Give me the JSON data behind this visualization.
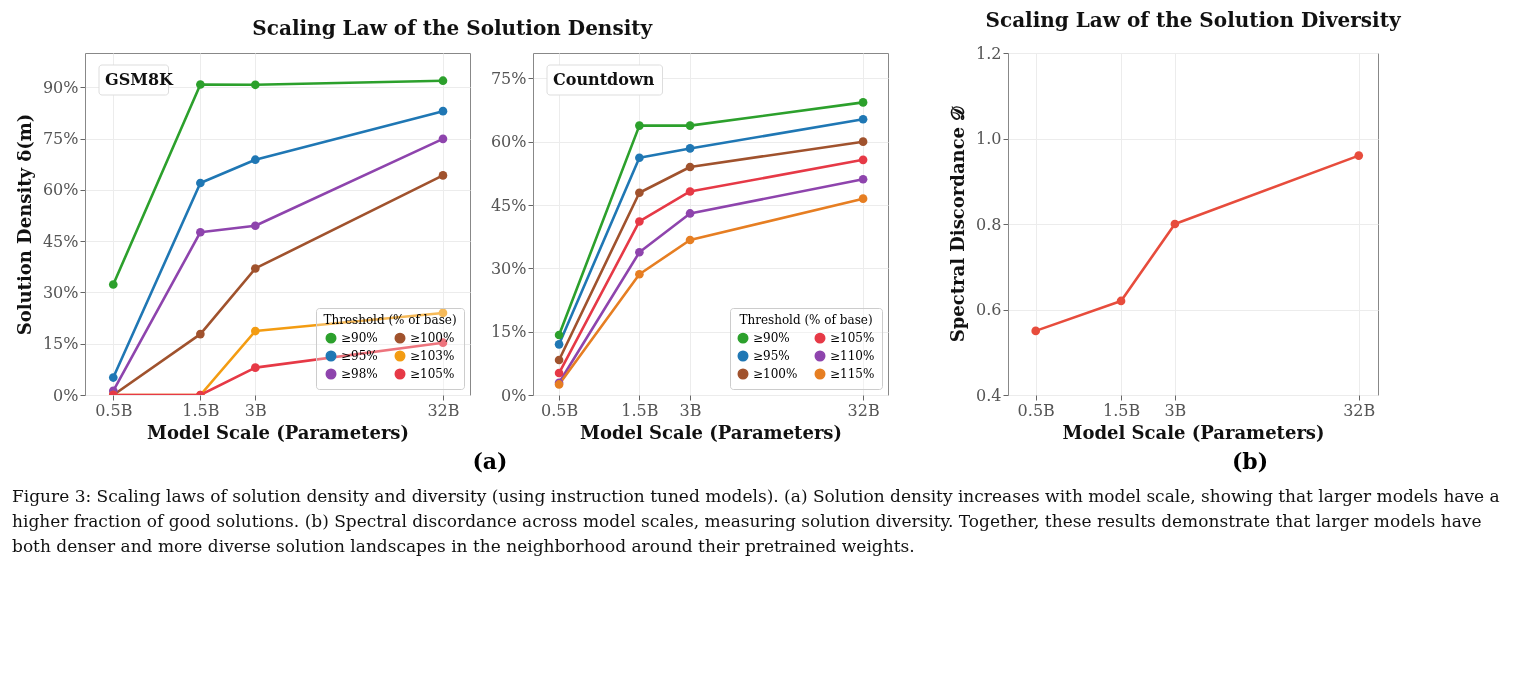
{
  "chart_data": [
    {
      "type": "line",
      "title": "Scaling Law of the Solution Density",
      "xlabel": "Model Scale (Parameters)",
      "ylabel": "Solution Density δ(m)",
      "legend_title": "Threshold (% of base)",
      "annotations": [
        "GSM8K",
        "(a)"
      ],
      "x": [
        0.5,
        1.5,
        3,
        32
      ],
      "log": "x",
      "xlim": [
        0.35,
        45
      ],
      "xticks": [
        {
          "value": 0.5,
          "label": "0.5B"
        },
        {
          "value": 1.5,
          "label": "1.5B"
        },
        {
          "value": 3,
          "label": "3B"
        },
        {
          "value": 32,
          "label": "32B"
        }
      ],
      "ylim": [
        0,
        100
      ],
      "yticks": [
        {
          "value": 0,
          "label": "0%"
        },
        {
          "value": 15,
          "label": "15%"
        },
        {
          "value": 30,
          "label": "30%"
        },
        {
          "value": 45,
          "label": "45%"
        },
        {
          "value": 60,
          "label": "60%"
        },
        {
          "value": 75,
          "label": "75%"
        },
        {
          "value": 90,
          "label": "90%"
        }
      ],
      "grid": true,
      "marker": "circle",
      "legend": "bottom right",
      "series": [
        {
          "name": "≥90%",
          "color": "#2ca02c",
          "values": [
            32.3,
            90.8,
            90.7,
            91.9
          ]
        },
        {
          "name": "≥95%",
          "color": "#1f77b4",
          "values": [
            5.1,
            62.0,
            68.8,
            83.0
          ]
        },
        {
          "name": "≥98%",
          "color": "#8e44ad",
          "values": [
            1.2,
            47.6,
            49.5,
            74.9
          ]
        },
        {
          "name": "≥100%",
          "color": "#a0522d",
          "values": [
            0,
            17.8,
            37.0,
            64.2
          ]
        },
        {
          "name": "≥103%",
          "color": "#f39c12",
          "values": [
            0,
            0,
            18.7,
            24.0
          ]
        },
        {
          "name": "≥105%",
          "color": "#e63946",
          "values": [
            0,
            0,
            8.0,
            15.3
          ]
        }
      ]
    },
    {
      "type": "line",
      "xlabel": "Model Scale (Parameters)",
      "legend_title": "Threshold (% of base)",
      "annotations": [
        "Countdown"
      ],
      "x": [
        0.5,
        1.5,
        3,
        32
      ],
      "log": "x",
      "xlim": [
        0.35,
        45
      ],
      "xticks": [
        {
          "value": 0.5,
          "label": "0.5B"
        },
        {
          "value": 1.5,
          "label": "1.5B"
        },
        {
          "value": 3,
          "label": "3B"
        },
        {
          "value": 32,
          "label": "32B"
        }
      ],
      "ylim": [
        0,
        81
      ],
      "yticks": [
        {
          "value": 0,
          "label": "0%"
        },
        {
          "value": 15,
          "label": "15%"
        },
        {
          "value": 30,
          "label": "30%"
        },
        {
          "value": 45,
          "label": "45%"
        },
        {
          "value": 60,
          "label": "60%"
        },
        {
          "value": 75,
          "label": "75%"
        }
      ],
      "grid": true,
      "marker": "circle",
      "legend": "bottom right",
      "series": [
        {
          "name": "≥90%",
          "color": "#2ca02c",
          "values": [
            14.2,
            63.8,
            63.8,
            69.3
          ]
        },
        {
          "name": "≥95%",
          "color": "#1f77b4",
          "values": [
            12.0,
            56.2,
            58.4,
            65.3
          ]
        },
        {
          "name": "≥100%",
          "color": "#a0522d",
          "values": [
            8.3,
            47.9,
            54.0,
            60.0
          ]
        },
        {
          "name": "≥105%",
          "color": "#e63946",
          "values": [
            5.2,
            41.1,
            48.2,
            55.7
          ]
        },
        {
          "name": "≥110%",
          "color": "#8e44ad",
          "values": [
            2.9,
            33.8,
            43.0,
            51.1
          ]
        },
        {
          "name": "≥115%",
          "color": "#e67e22",
          "values": [
            2.5,
            28.6,
            36.7,
            46.5
          ]
        }
      ]
    },
    {
      "type": "line",
      "title": "Scaling Law of the Solution Diversity",
      "xlabel": "Model Scale (Parameters)",
      "ylabel": "Spectral Discordance 𝒟",
      "annotations": [
        "(b)",
        "Figure 3: Scaling laws of solution density and diversity (using instruction tuned models). (a) Solution density increases with model scale, showing that larger models have a higher fraction of good solutions. (b) Spectral discordance across model scales, measuring solution diversity. Together, these results demonstrate that larger models have both denser and more diverse solution landscapes in the neighborhood around their pretrained weights."
      ],
      "x": [
        0.5,
        1.5,
        3,
        32
      ],
      "log": "x",
      "xlim": [
        0.35,
        41
      ],
      "xticks": [
        {
          "value": 0.5,
          "label": "0.5B"
        },
        {
          "value": 1.5,
          "label": "1.5B"
        },
        {
          "value": 3,
          "label": "3B"
        },
        {
          "value": 32,
          "label": "32B"
        }
      ],
      "ylim": [
        0.4,
        1.2
      ],
      "yticks": [
        0.4,
        0.6,
        0.8,
        {
          "value": 1,
          "label": "1.0"
        },
        1.2
      ],
      "grid": true,
      "marker": "circle",
      "series": [
        {
          "color": "#e74c3c",
          "values": [
            0.55,
            0.62,
            0.8,
            0.96
          ]
        }
      ]
    }
  ]
}
